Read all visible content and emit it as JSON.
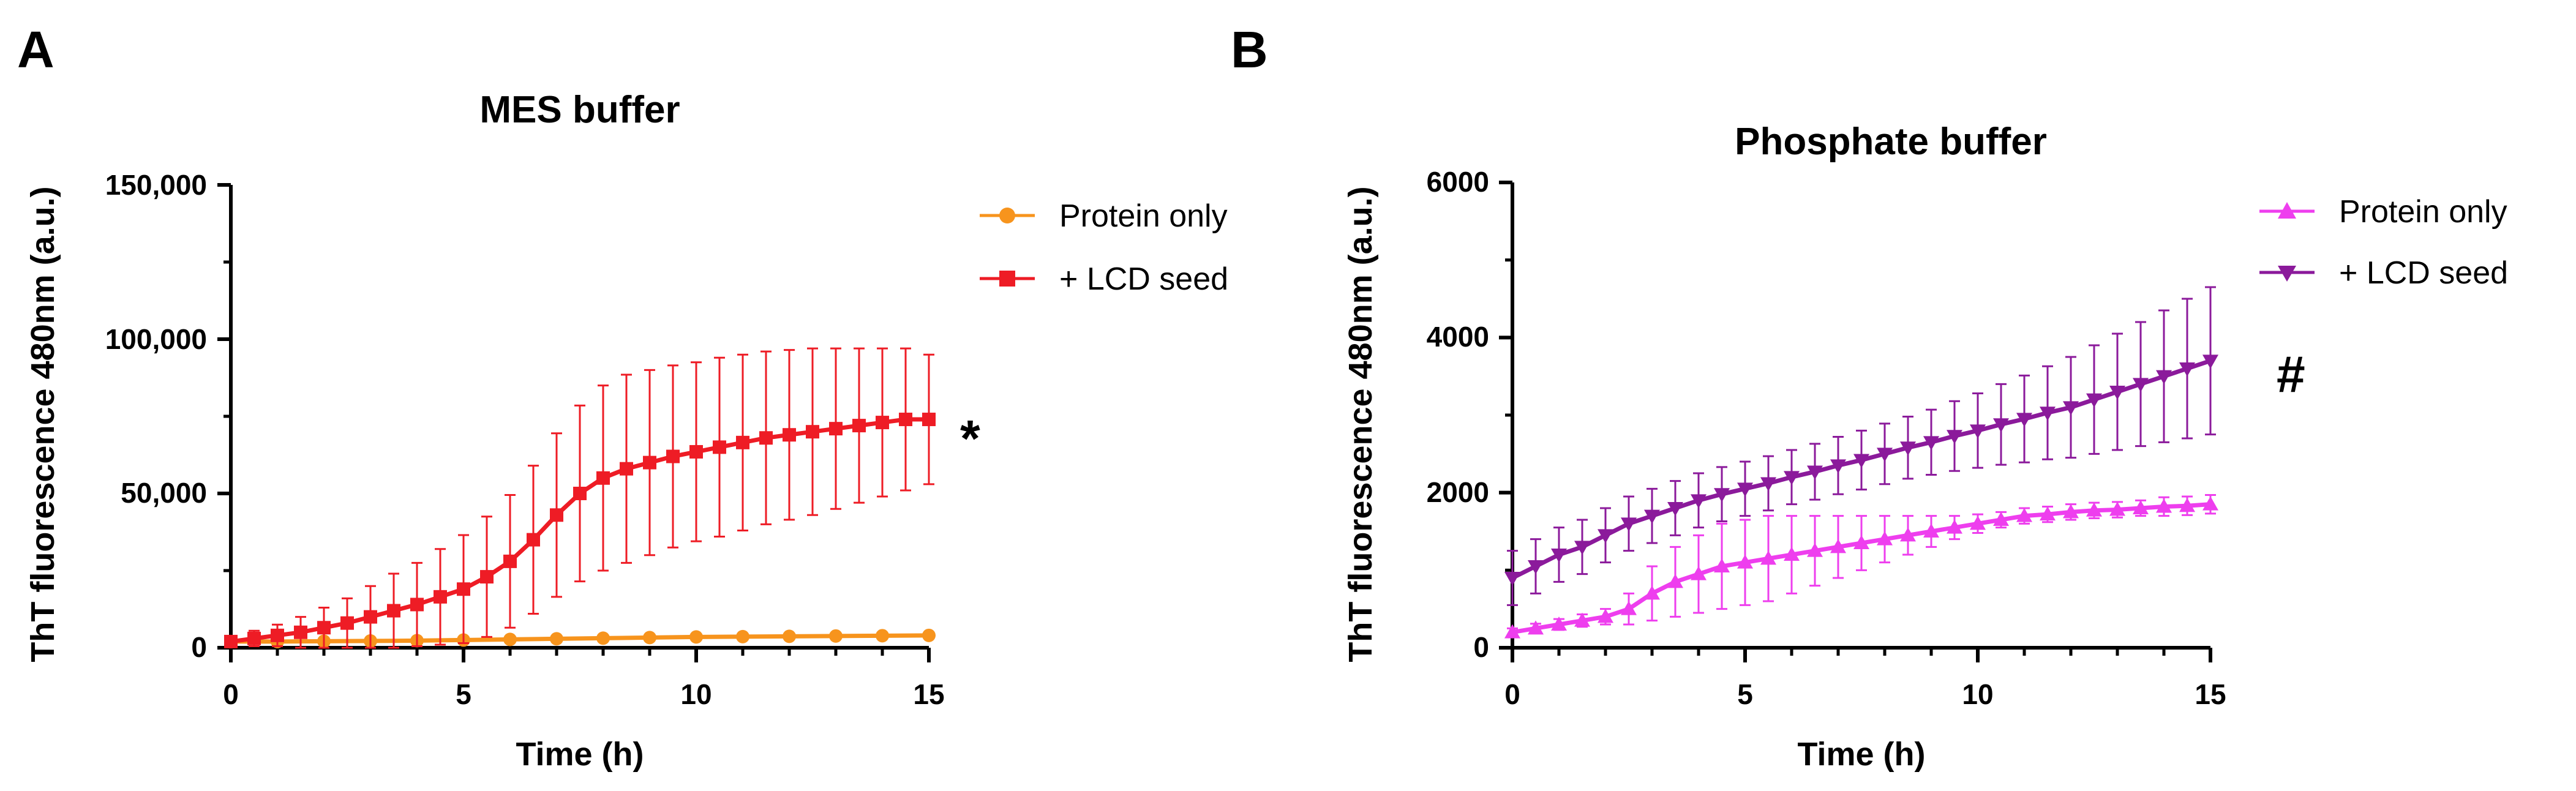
{
  "chart_data": [
    {
      "panel": "A",
      "type": "line",
      "title": "MES buffer",
      "xlabel": "Time (h)",
      "ylabel": "ThT fluorescence 480nm (a.u.)",
      "xlim": [
        0,
        15
      ],
      "ylim": [
        0,
        150000
      ],
      "xticks": [
        0,
        5,
        10,
        15
      ],
      "xtick_labels": [
        "0",
        "5",
        "10",
        "15"
      ],
      "yticks": [
        0,
        50000,
        100000,
        150000
      ],
      "ytick_labels": [
        "0",
        "50,000",
        "100,000",
        "150,000"
      ],
      "legend_position": "top-right",
      "annotation": "*",
      "series": [
        {
          "name": "Protein only",
          "color": "#F7941D",
          "marker": "circle",
          "x": [
            0,
            1,
            2,
            3,
            4,
            5,
            6,
            7,
            8,
            9,
            10,
            11,
            12,
            13,
            14,
            15
          ],
          "y": [
            2000,
            2000,
            2100,
            2200,
            2300,
            2500,
            2700,
            2900,
            3100,
            3300,
            3500,
            3600,
            3700,
            3800,
            3900,
            4000
          ],
          "error": [
            300,
            300,
            300,
            350,
            400,
            400,
            450,
            500,
            500,
            550,
            600,
            600,
            650,
            650,
            700,
            700
          ]
        },
        {
          "name": "+ LCD seed",
          "color": "#EE1C25",
          "marker": "square",
          "x": [
            0,
            0.5,
            1,
            1.5,
            2,
            2.5,
            3,
            3.5,
            4,
            4.5,
            5,
            5.5,
            6,
            6.5,
            7,
            7.5,
            8,
            8.5,
            9,
            9.5,
            10,
            10.5,
            11,
            11.5,
            12,
            12.5,
            13,
            13.5,
            14,
            14.5,
            15
          ],
          "y": [
            2000,
            3000,
            4000,
            5000,
            6500,
            8000,
            10000,
            12000,
            14000,
            16500,
            19000,
            23000,
            28000,
            35000,
            43000,
            50000,
            55000,
            58000,
            60000,
            62000,
            63500,
            65000,
            66500,
            68000,
            69000,
            70000,
            71000,
            72000,
            73000,
            74000,
            74000
          ],
          "error": [
            1500,
            2500,
            3500,
            5000,
            6500,
            8000,
            10000,
            12000,
            13500,
            15500,
            17500,
            19500,
            21500,
            24000,
            26500,
            28500,
            30000,
            30500,
            30000,
            29500,
            29000,
            29000,
            28500,
            28000,
            27500,
            27000,
            26000,
            25000,
            24000,
            23000,
            21000
          ]
        }
      ]
    },
    {
      "panel": "B",
      "type": "line",
      "title": "Phosphate buffer",
      "xlabel": "Time (h)",
      "ylabel": "ThT fluorescence 480nm (a.u.)",
      "xlim": [
        0,
        15
      ],
      "ylim": [
        0,
        6000
      ],
      "xticks": [
        0,
        5,
        10,
        15
      ],
      "xtick_labels": [
        "0",
        "5",
        "10",
        "15"
      ],
      "yticks": [
        0,
        2000,
        4000,
        6000
      ],
      "ytick_labels": [
        "0",
        "2000",
        "4000",
        "6000"
      ],
      "legend_position": "top-right",
      "annotation": "#",
      "series": [
        {
          "name": "Protein only",
          "color": "#EE3EEE",
          "marker": "triangle-up",
          "x": [
            0,
            0.5,
            1,
            1.5,
            2,
            2.5,
            3,
            3.5,
            4,
            4.5,
            5,
            5.5,
            6,
            6.5,
            7,
            7.5,
            8,
            8.5,
            9,
            9.5,
            10,
            10.5,
            11,
            11.5,
            12,
            12.5,
            13,
            13.5,
            14,
            14.5,
            15
          ],
          "y": [
            200,
            250,
            300,
            350,
            400,
            500,
            700,
            850,
            950,
            1050,
            1100,
            1150,
            1200,
            1250,
            1300,
            1350,
            1400,
            1450,
            1500,
            1550,
            1600,
            1650,
            1700,
            1720,
            1750,
            1770,
            1780,
            1800,
            1820,
            1830,
            1850
          ],
          "error": [
            50,
            60,
            70,
            80,
            100,
            200,
            350,
            450,
            500,
            550,
            550,
            550,
            500,
            450,
            400,
            350,
            300,
            250,
            200,
            150,
            120,
            100,
            100,
            100,
            100,
            100,
            100,
            100,
            120,
            120,
            120
          ]
        },
        {
          "name": "+ LCD seed",
          "color": "#8B1A9B",
          "marker": "triangle-down",
          "x": [
            0,
            0.5,
            1,
            1.5,
            2,
            2.5,
            3,
            3.5,
            4,
            4.5,
            5,
            5.5,
            6,
            6.5,
            7,
            7.5,
            8,
            8.5,
            9,
            9.5,
            10,
            10.5,
            11,
            11.5,
            12,
            12.5,
            13,
            13.5,
            14,
            14.5,
            15
          ],
          "y": [
            900,
            1050,
            1200,
            1300,
            1450,
            1600,
            1700,
            1800,
            1900,
            1980,
            2050,
            2120,
            2200,
            2270,
            2350,
            2420,
            2500,
            2580,
            2650,
            2730,
            2800,
            2880,
            2950,
            3030,
            3100,
            3200,
            3300,
            3400,
            3500,
            3600,
            3700
          ],
          "error": [
            350,
            350,
            350,
            350,
            350,
            350,
            350,
            350,
            350,
            350,
            350,
            350,
            350,
            360,
            370,
            380,
            390,
            400,
            420,
            450,
            480,
            520,
            560,
            600,
            650,
            700,
            750,
            800,
            850,
            900,
            950
          ]
        }
      ]
    }
  ]
}
